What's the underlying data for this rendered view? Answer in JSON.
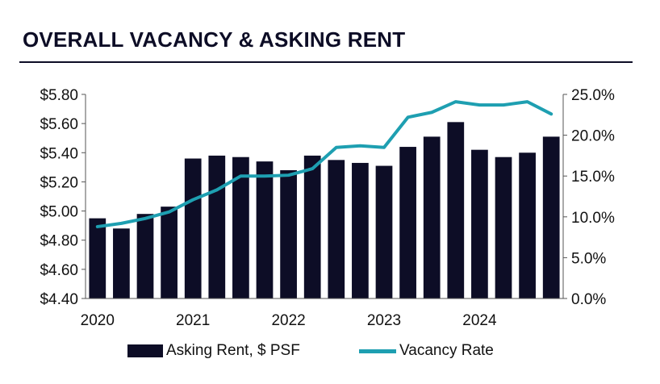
{
  "title": "OVERALL VACANCY & ASKING RENT",
  "colors": {
    "bar": "#0d0d26",
    "line": "#1e9fb1",
    "axis": "#555555",
    "title_rule": "#0d0d26"
  },
  "chart_data": {
    "type": "bar+line",
    "categories": [
      "2020 Q1",
      "2020 Q2",
      "2020 Q3",
      "2020 Q4",
      "2021 Q1",
      "2021 Q2",
      "2021 Q3",
      "2021 Q4",
      "2022 Q1",
      "2022 Q2",
      "2022 Q3",
      "2022 Q4",
      "2023 Q1",
      "2023 Q2",
      "2023 Q3",
      "2023 Q4",
      "2024 Q1",
      "2024 Q2",
      "2024 Q3",
      "2024 Q4"
    ],
    "x_tick_labels": [
      "2020",
      "2021",
      "2022",
      "2023",
      "2024"
    ],
    "y_left": {
      "min": 4.4,
      "max": 5.8,
      "ticks": [
        "$4.40",
        "$4.60",
        "$4.80",
        "$5.00",
        "$5.20",
        "$5.40",
        "$5.60",
        "$5.80"
      ]
    },
    "y_right": {
      "min": 0,
      "max": 25,
      "ticks": [
        "0.0%",
        "5.0%",
        "10.0%",
        "15.0%",
        "20.0%",
        "25.0%"
      ]
    },
    "series": [
      {
        "name": "Asking Rent, $ PSF",
        "type": "bar",
        "axis": "left",
        "values": [
          4.95,
          4.88,
          4.98,
          5.03,
          5.36,
          5.38,
          5.37,
          5.34,
          5.28,
          5.38,
          5.35,
          5.33,
          5.31,
          5.44,
          5.51,
          5.61,
          5.42,
          5.37,
          5.4,
          5.51
        ]
      },
      {
        "name": "Vacancy Rate",
        "type": "line",
        "axis": "right",
        "values": [
          8.8,
          9.2,
          9.8,
          10.6,
          12.1,
          13.3,
          15.0,
          15.0,
          15.1,
          15.9,
          18.5,
          18.7,
          18.5,
          22.2,
          22.8,
          24.1,
          23.7,
          23.7,
          24.1,
          22.6
        ]
      }
    ],
    "legend_position": "bottom"
  }
}
